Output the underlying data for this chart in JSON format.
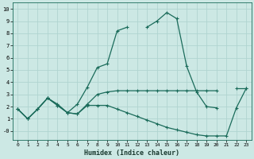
{
  "xlabel": "Humidex (Indice chaleur)",
  "bg_color": "#cce8e4",
  "grid_color": "#b0d4d0",
  "line_color": "#1a6b5a",
  "xlim": [
    -0.5,
    23.5
  ],
  "ylim": [
    -0.7,
    10.5
  ],
  "xticks": [
    0,
    1,
    2,
    3,
    4,
    5,
    6,
    7,
    8,
    9,
    10,
    11,
    12,
    13,
    14,
    15,
    16,
    17,
    18,
    19,
    20,
    21,
    22,
    23
  ],
  "yticks": [
    0,
    1,
    2,
    3,
    4,
    5,
    6,
    7,
    8,
    9,
    10
  ],
  "ytick_labels": [
    "-0",
    "1",
    "2",
    "3",
    "4",
    "5",
    "6",
    "7",
    "8",
    "9",
    "10"
  ],
  "line1_y": [
    1.8,
    1.0,
    1.8,
    2.7,
    2.1,
    1.5,
    2.2,
    3.6,
    5.2,
    5.5,
    8.2,
    8.5,
    null,
    8.5,
    9.0,
    9.7,
    9.2,
    5.3,
    3.2,
    2.0,
    1.9,
    null,
    null,
    null
  ],
  "line2_y": [
    1.8,
    1.0,
    1.8,
    2.7,
    2.1,
    1.5,
    1.4,
    2.2,
    3.0,
    3.2,
    3.3,
    3.3,
    3.3,
    3.3,
    3.3,
    3.3,
    3.3,
    3.3,
    3.3,
    3.3,
    3.3,
    null,
    3.5,
    3.5
  ],
  "line3_y": [
    1.8,
    1.0,
    1.8,
    2.7,
    2.2,
    1.5,
    1.4,
    2.1,
    2.1,
    2.1,
    1.8,
    1.5,
    1.2,
    0.9,
    0.6,
    0.3,
    0.1,
    -0.1,
    -0.3,
    -0.4,
    -0.4,
    -0.4,
    1.9,
    3.5
  ]
}
